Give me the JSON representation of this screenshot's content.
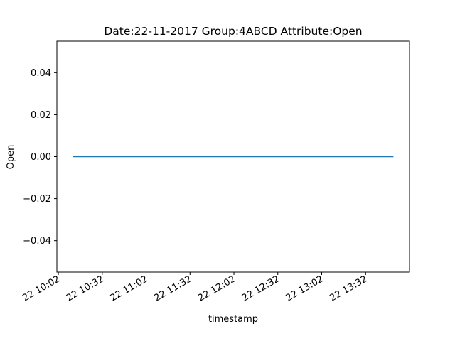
{
  "chart_data": {
    "type": "line",
    "title": "Date:22-11-2017  Group:4ABCD Attribute:Open",
    "xlabel": "timestamp",
    "ylabel": "Open",
    "x_ticks": [
      "22 10:02",
      "22 10:32",
      "22 11:02",
      "22 11:32",
      "22 12:02",
      "22 12:32",
      "22 13:02",
      "22 13:32"
    ],
    "x_tick_minutes": [
      602,
      632,
      662,
      692,
      722,
      752,
      782,
      812
    ],
    "xlim_minutes": [
      601,
      842
    ],
    "y_ticks": [
      -0.04,
      -0.02,
      0.0,
      0.02,
      0.04
    ],
    "y_tick_labels": [
      "−0.04",
      "−0.02",
      "0.00",
      "0.02",
      "0.04"
    ],
    "ylim": [
      -0.055,
      0.055
    ],
    "grid": false,
    "series": [
      {
        "color": "#1f77b4",
        "x_minutes": [
          612,
          831
        ],
        "values": [
          0,
          0
        ]
      }
    ]
  }
}
